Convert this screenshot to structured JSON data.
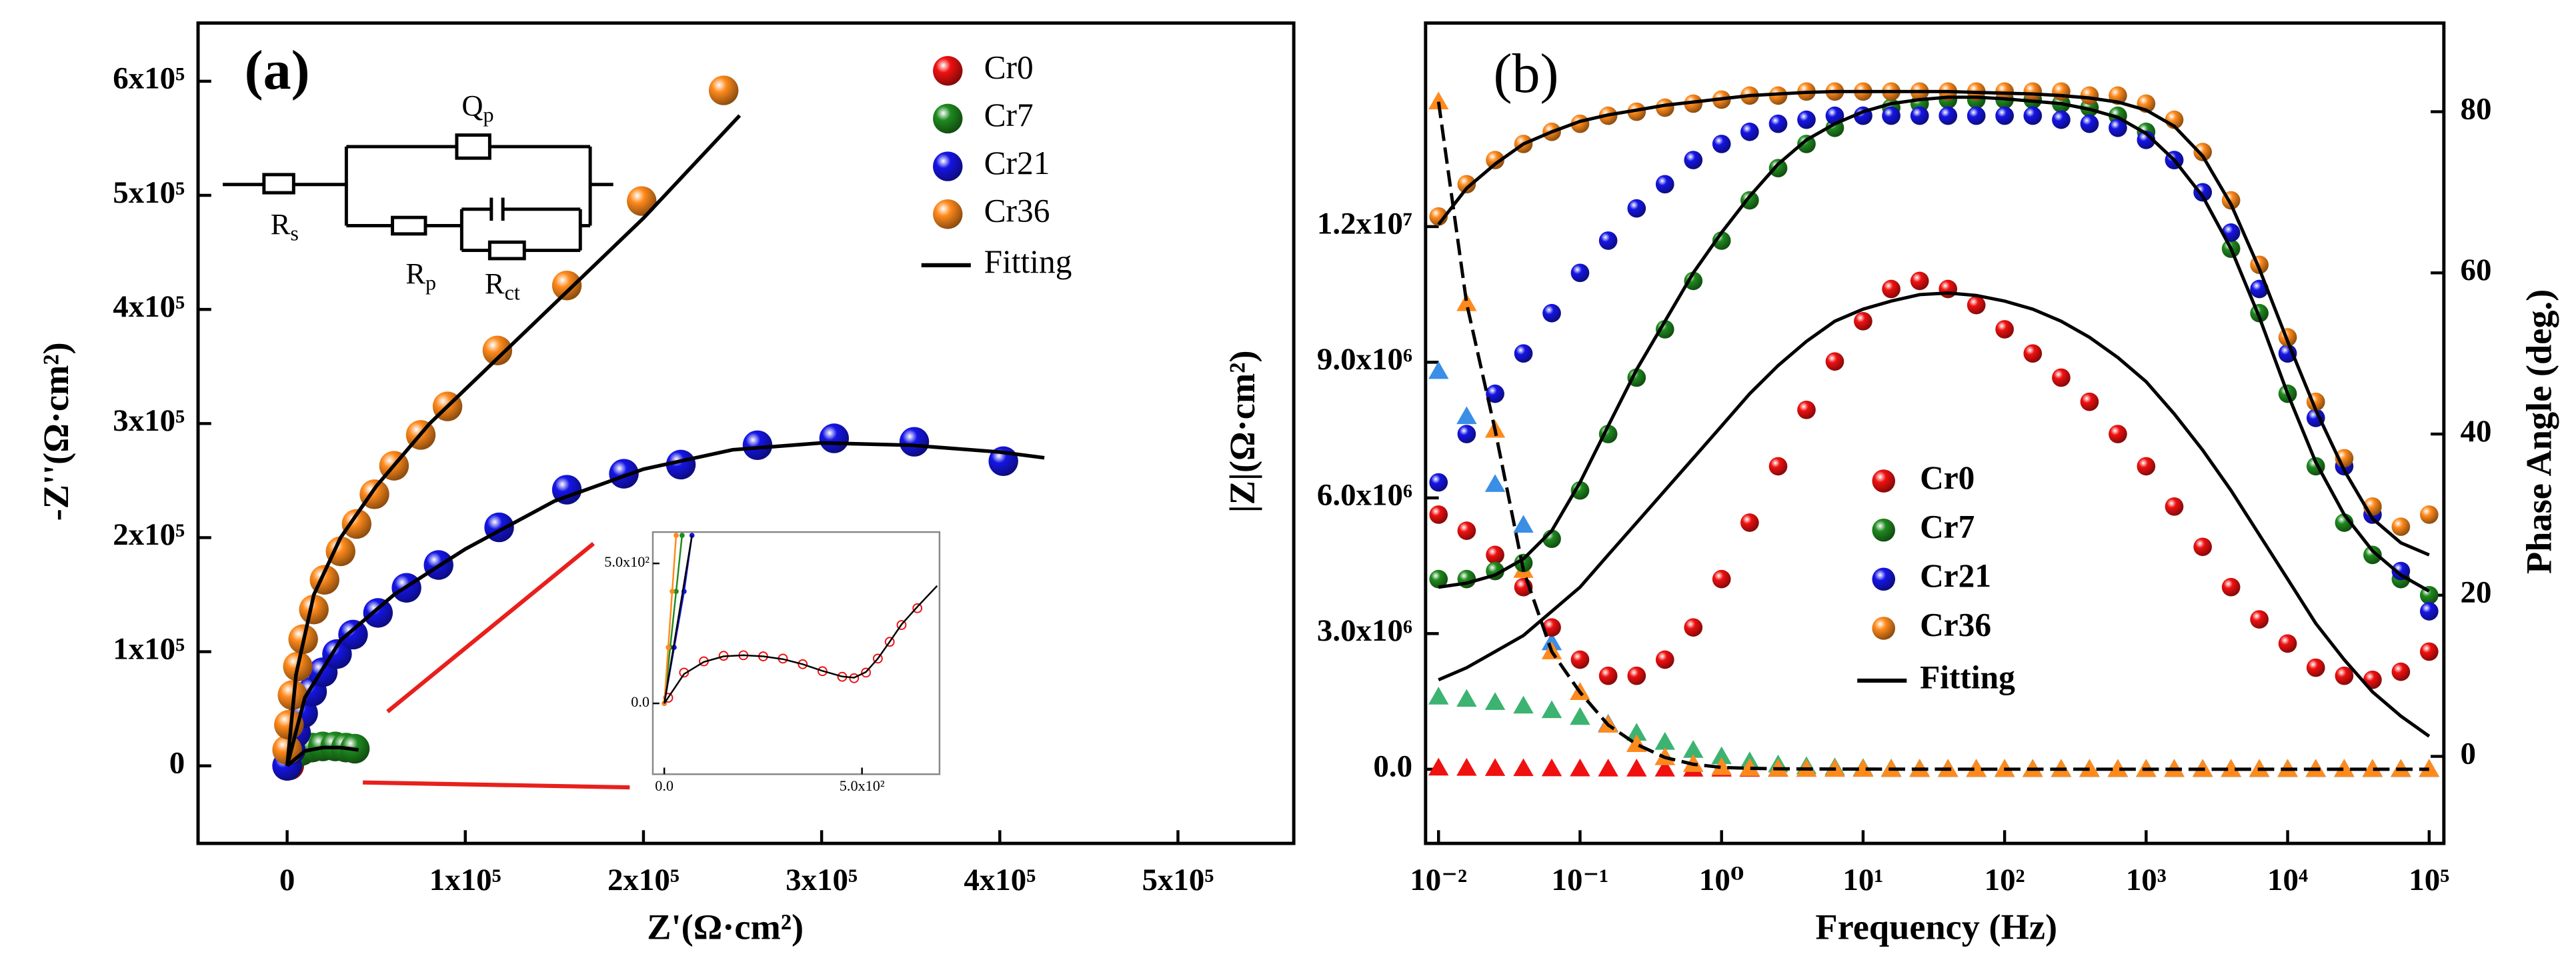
{
  "chart_data": [
    {
      "type": "scatter",
      "panel_label": "(a)",
      "xlabel": "Z'(Ω·cm²)",
      "ylabel": "-Z''(Ω·cm²)",
      "xlim": [
        -50000,
        565000
      ],
      "ylim": [
        -68000,
        651000
      ],
      "xticks": [
        0,
        {
          "value": 100000,
          "label": "1x10⁵"
        },
        {
          "value": 200000,
          "label": "2x10⁵"
        },
        {
          "value": 300000,
          "label": "3x10⁵"
        },
        {
          "value": 400000,
          "label": "4x10⁵"
        },
        {
          "value": 500000,
          "label": "5x10⁵"
        }
      ],
      "yticks": [
        0,
        {
          "value": 100000,
          "label": "1x10⁵"
        },
        {
          "value": 200000,
          "label": "2x10⁵"
        },
        {
          "value": 300000,
          "label": "3x10⁵"
        },
        {
          "value": 400000,
          "label": "4x10⁵"
        },
        {
          "value": 500000,
          "label": "5x10⁵"
        },
        {
          "value": 600000,
          "label": "6x10⁵"
        }
      ],
      "legend": "upper right",
      "series": [
        {
          "name": "Cr0",
          "color": "#f01010",
          "marker": "sphere",
          "x": [
            0,
            400,
            800,
            1200
          ],
          "y": [
            0,
            300,
            400,
            300
          ]
        },
        {
          "name": "Cr7",
          "color": "#1f8a1f",
          "marker": "sphere",
          "x": [
            0,
            3000,
            8000,
            14000,
            20000,
            27000,
            33000,
            38000
          ],
          "y": [
            0,
            8000,
            13000,
            16000,
            17000,
            17000,
            16000,
            15000
          ]
        },
        {
          "name": "Cr21",
          "color": "#1515e6",
          "marker": "sphere",
          "x": [
            0,
            2000,
            5000,
            9000,
            14000,
            20000,
            28000,
            37000,
            51000,
            67000,
            85000,
            119000,
            157000,
            189000,
            221000,
            264000,
            307000,
            352000,
            402000
          ],
          "y": [
            0,
            14000,
            29000,
            46000,
            65000,
            82000,
            98000,
            115000,
            134000,
            156000,
            176000,
            209000,
            242000,
            256000,
            264000,
            281000,
            287000,
            284000,
            267000
          ]
        },
        {
          "name": "Cr36",
          "color": "#ff8a1c",
          "marker": "sphere",
          "x": [
            0,
            1000,
            3000,
            6000,
            9000,
            15000,
            21000,
            30000,
            39000,
            49000,
            60000,
            75000,
            90000,
            118000,
            157000,
            199000,
            245000
          ],
          "y": [
            14000,
            36000,
            62000,
            87000,
            111000,
            137000,
            163000,
            188000,
            212000,
            238000,
            263000,
            290000,
            315000,
            364000,
            421000,
            495000,
            592000
          ]
        }
      ],
      "fit_name": "Fitting",
      "fit_color": "#000000",
      "fits": [
        {
          "x": [
            0,
            10000,
            20000,
            30000,
            40000
          ],
          "y": [
            0,
            13000,
            16000,
            16000,
            14000
          ]
        },
        {
          "x": [
            0,
            10000,
            30000,
            60000,
            100000,
            150000,
            200000,
            250000,
            300000,
            350000,
            400000,
            425000
          ],
          "y": [
            0,
            60000,
            110000,
            150000,
            190000,
            232000,
            260000,
            277000,
            283000,
            281000,
            275000,
            270000
          ]
        },
        {
          "x": [
            0,
            5000,
            15000,
            30000,
            50000,
            80000,
            120000,
            160000,
            200000,
            254000
          ],
          "y": [
            0,
            80000,
            150000,
            200000,
            245000,
            300000,
            360000,
            420000,
            480000,
            570000
          ]
        }
      ],
      "annotations": [
        {
          "text": "Q",
          "sub": "p"
        },
        {
          "text": "R",
          "sub": "s"
        },
        {
          "text": "R",
          "sub": "p"
        },
        {
          "text": "R",
          "sub": "ct"
        }
      ]
    },
    {
      "type": "scatter",
      "xlim": [
        -29,
        696
      ],
      "ylim": [
        -253,
        612
      ],
      "xticks": [
        {
          "value": 0,
          "label": "0.0"
        },
        {
          "value": 500,
          "label": "5.0x10²"
        }
      ],
      "yticks": [
        {
          "value": 0,
          "label": "0.0"
        },
        {
          "value": 500,
          "label": "5.0x10²"
        }
      ],
      "series": [
        {
          "color": "#f01010",
          "marker": "open",
          "x": [
            10,
            50,
            100,
            150,
            200,
            250,
            300,
            350,
            400,
            450,
            480,
            510,
            540,
            570,
            600,
            640
          ],
          "y": [
            20,
            110,
            150,
            170,
            172,
            168,
            160,
            140,
            115,
            95,
            90,
            110,
            160,
            220,
            280,
            340
          ]
        },
        {
          "color": "#1f8a1f",
          "marker": "dot",
          "x": [
            0,
            15,
            30,
            45
          ],
          "y": [
            0,
            200,
            400,
            600
          ]
        },
        {
          "color": "#1515e6",
          "marker": "dot",
          "x": [
            0,
            25,
            50,
            70
          ],
          "y": [
            0,
            200,
            400,
            600
          ]
        },
        {
          "color": "#ff8a1c",
          "marker": "dot",
          "x": [
            0,
            10,
            20,
            30
          ],
          "y": [
            0,
            200,
            400,
            600
          ]
        }
      ],
      "fit_color": "#000000",
      "fits": [
        {
          "x": [
            0,
            50,
            100,
            150,
            200,
            250,
            300,
            350,
            400,
            450,
            480,
            510,
            540,
            570,
            600,
            640,
            690
          ],
          "y": [
            0,
            105,
            148,
            168,
            172,
            168,
            158,
            140,
            116,
            96,
            92,
            112,
            160,
            220,
            282,
            345,
            420
          ]
        },
        {
          "x": [
            0,
            35,
            70
          ],
          "y": [
            0,
            300,
            600
          ]
        }
      ]
    },
    {
      "type": "scatter",
      "panel_label": "(b)",
      "xlabel": "Frequency (Hz)",
      "ylabel": "|Z|(Ω·cm²)",
      "y2label": "Phase Angle (deg.)",
      "xlog": true,
      "xlim": [
        0.0081,
        127000
      ],
      "ylim": [
        -1640000,
        16500000
      ],
      "y2lim": [
        -10.8,
        91
      ],
      "xticks": [
        {
          "value": 0.01,
          "label": "10⁻²"
        },
        {
          "value": 0.1,
          "label": "10⁻¹"
        },
        {
          "value": 1,
          "label": "10⁰"
        },
        {
          "value": 10,
          "label": "10¹"
        },
        {
          "value": 100,
          "label": "10²"
        },
        {
          "value": 1000,
          "label": "10³"
        },
        {
          "value": 10000,
          "label": "10⁴"
        },
        {
          "value": 100000,
          "label": "10⁵"
        }
      ],
      "yticks": [
        {
          "value": 0,
          "label": "0.0"
        },
        {
          "value": 3000000,
          "label": "3.0x10⁶"
        },
        {
          "value": 6000000,
          "label": "6.0x10⁶"
        },
        {
          "value": 9000000,
          "label": "9.0x10⁶"
        },
        {
          "value": 12000000,
          "label": "1.2x10⁷"
        }
      ],
      "y2ticks": [
        0,
        20,
        40,
        60,
        80
      ],
      "legend": "lower center",
      "x": [
        0.01,
        0.0158,
        0.0251,
        0.0398,
        0.0631,
        0.1,
        0.158,
        0.251,
        0.398,
        0.631,
        1,
        1.58,
        2.51,
        3.98,
        6.31,
        10,
        15.8,
        25.1,
        39.8,
        63.1,
        100,
        158,
        251,
        398,
        631,
        1000,
        1580,
        2510,
        3980,
        6310,
        10000,
        15800,
        25100,
        39800,
        63100,
        100000
      ],
      "series": [
        {
          "color": "#f01010",
          "marker": "triangle",
          "values": [
            30000,
            25000,
            20000,
            16000,
            13000,
            11000,
            9500,
            8500,
            7500,
            6500,
            5500,
            4500,
            3500,
            2700,
            2000,
            1500,
            1100,
            800,
            600,
            450,
            350,
            280,
            220,
            180,
            150,
            120,
            100,
            80,
            60,
            50,
            40,
            30,
            25,
            20,
            15,
            12
          ]
        },
        {
          "color": "#3cb371",
          "marker": "triangle",
          "values": [
            1600000,
            1550000,
            1480000,
            1400000,
            1300000,
            1150000,
            980000,
            800000,
            600000,
            420000,
            280000,
            170000,
            100000,
            60000,
            35000,
            20000,
            12000,
            7000,
            4000,
            2500,
            1500,
            1000,
            700,
            500,
            350,
            250,
            180,
            130,
            100,
            80,
            60,
            45,
            35,
            28,
            22,
            18
          ]
        },
        {
          "color": "#3a8ee6",
          "marker": "triangle",
          "values": [
            8800000,
            7800000,
            6300000,
            5400000,
            2800000,
            1700000,
            1000000,
            550000,
            260000,
            110000,
            40000,
            20000,
            10000,
            6000,
            4000,
            3000,
            2000,
            1500,
            1000,
            800,
            600,
            400,
            300,
            200,
            150,
            100,
            80,
            60,
            50,
            40,
            30,
            25,
            20,
            15,
            12,
            10
          ]
        },
        {
          "color": "#ff8a1c",
          "marker": "triangle",
          "values": [
            14760000,
            10300000,
            7500000,
            4400000,
            2600000,
            1700000,
            980000,
            550000,
            260000,
            110000,
            40000,
            20000,
            10000,
            6000,
            4000,
            3000,
            2000,
            1500,
            1000,
            800,
            600,
            400,
            300,
            200,
            150,
            100,
            80,
            60,
            50,
            40,
            30,
            25,
            20,
            15,
            12,
            10
          ]
        },
        {
          "name": "Cr0",
          "color": "#f01010",
          "marker": "sphere",
          "axis": "y2",
          "values": [
            30,
            28,
            25,
            21,
            16,
            12,
            10,
            10,
            12,
            16,
            22,
            29,
            36,
            43,
            49,
            54,
            58,
            59,
            58,
            56,
            53,
            50,
            47,
            44,
            40,
            36,
            31,
            26,
            21,
            17,
            14,
            11,
            10,
            9.5,
            10.5,
            13
          ]
        },
        {
          "name": "Cr7",
          "color": "#1f8a1f",
          "marker": "sphere",
          "axis": "y2",
          "values": [
            22,
            22,
            23,
            24,
            27,
            33,
            40,
            47,
            53,
            59,
            64,
            69,
            73,
            76,
            78,
            79.5,
            80.5,
            81,
            81.5,
            81.5,
            81.5,
            81.5,
            81,
            80.5,
            79.5,
            77.5,
            74,
            70,
            63,
            55,
            45,
            36,
            29,
            25,
            22,
            20
          ]
        },
        {
          "name": "Cr21",
          "color": "#1515e6",
          "marker": "sphere",
          "axis": "y2",
          "values": [
            34,
            40,
            45,
            50,
            55,
            60,
            64,
            68,
            71,
            74,
            76,
            77.5,
            78.5,
            79,
            79.5,
            79.5,
            79.5,
            79.5,
            79.5,
            79.5,
            79.5,
            79.5,
            79,
            78.5,
            78,
            76.5,
            74,
            70,
            65,
            58,
            50,
            42,
            36,
            30,
            23,
            18
          ]
        },
        {
          "name": "Cr36",
          "color": "#ff8a1c",
          "marker": "sphere",
          "axis": "y2",
          "values": [
            67,
            71,
            74,
            76,
            77.5,
            78.5,
            79.5,
            80,
            80.5,
            81,
            81.5,
            82,
            82,
            82.5,
            82.5,
            82.5,
            82.5,
            82.5,
            82.5,
            82.5,
            82.5,
            82.5,
            82.5,
            82,
            82,
            81,
            79,
            75,
            69,
            61,
            52,
            44,
            37,
            31,
            28.5,
            30
          ]
        }
      ],
      "fit_name": "Fitting",
      "fit_color": "#000000",
      "fits": [
        {
          "axis": "y2",
          "values": [
            9.5,
            11,
            13,
            15,
            18,
            21,
            25,
            29,
            33,
            37,
            41,
            45,
            48.5,
            51.5,
            54,
            55.5,
            56.5,
            57.3,
            57.5,
            57.2,
            56.5,
            55.5,
            54,
            52,
            49.5,
            46.5,
            42.5,
            38,
            33,
            27.5,
            22,
            16.5,
            12,
            8,
            5,
            2.5
          ]
        },
        {
          "axis": "y2",
          "values": [
            21,
            21.5,
            22.5,
            24.5,
            28,
            34,
            41,
            48,
            54,
            60,
            65,
            69.5,
            73.5,
            76.5,
            78.5,
            80,
            81,
            81.5,
            81.8,
            81.8,
            81.6,
            81.3,
            81,
            80.3,
            79.3,
            77.3,
            74,
            69.5,
            63,
            54.5,
            45,
            36.5,
            30,
            25.5,
            22.5,
            20.5
          ]
        },
        {
          "axis": "y2",
          "values": [
            66,
            70.5,
            73.5,
            76,
            77.5,
            78.8,
            79.6,
            80.2,
            80.8,
            81.2,
            81.6,
            82,
            82.2,
            82.4,
            82.5,
            82.5,
            82.5,
            82.5,
            82.5,
            82.4,
            82.3,
            82.2,
            82,
            81.7,
            81.2,
            80.2,
            78.2,
            74.5,
            68.5,
            60.5,
            51.5,
            43,
            35.5,
            29.5,
            26.5,
            25
          ]
        },
        {
          "values": [
            14760000,
            10300000,
            7500000,
            4400000,
            2600000,
            1700000,
            980000,
            550000,
            260000,
            110000,
            40000,
            20000,
            10000,
            6000,
            4000,
            3000,
            2000,
            1500,
            1000,
            800,
            600,
            400,
            300,
            200,
            150,
            100,
            80,
            60,
            50,
            40,
            30,
            25,
            20,
            15,
            12,
            10
          ]
        }
      ]
    }
  ]
}
